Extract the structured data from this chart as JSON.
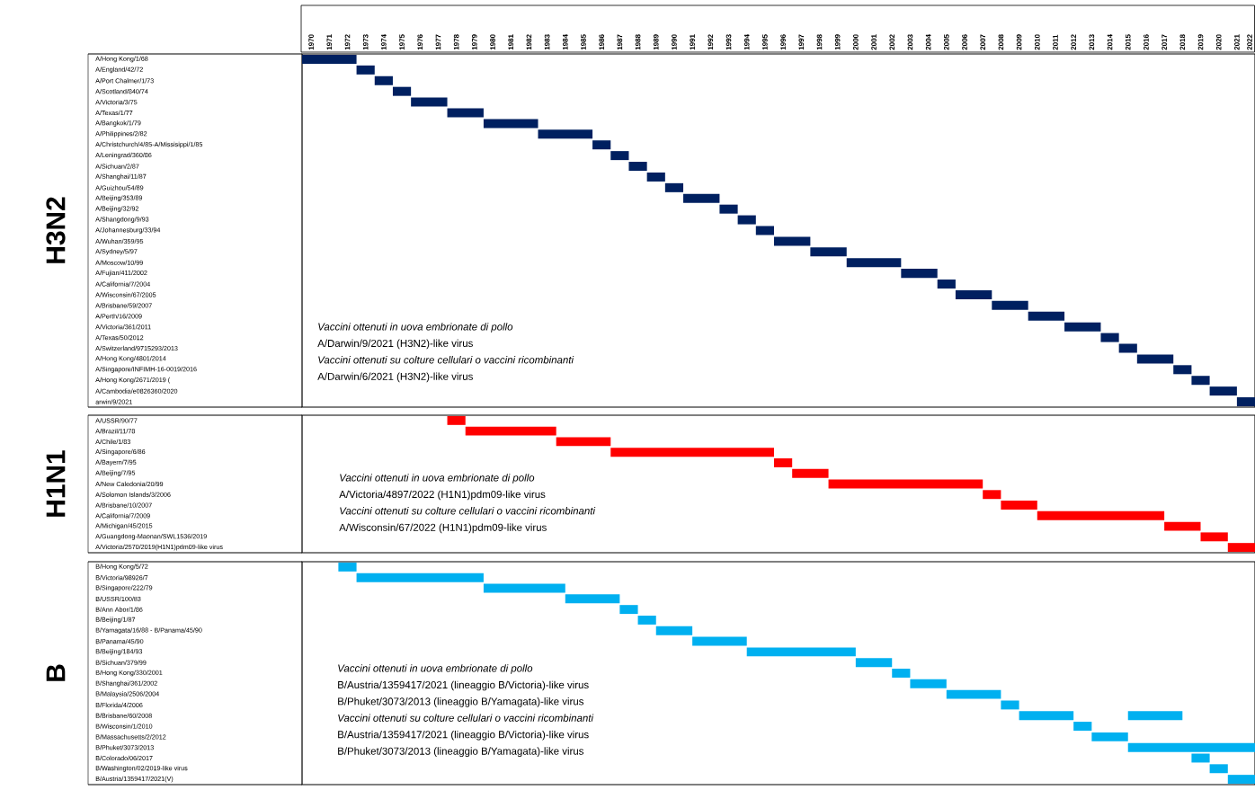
{
  "chart_data": [
    {
      "type": "bar",
      "orientation": "horizontal",
      "ylabel": "H3N2",
      "color": "#002060",
      "categories": [
        "A/Hong Kong/1/68",
        "A/England/42/72",
        "A/Port Chalmer/1/73",
        "A/Scotland/840/74",
        "A/Victoria/3/75",
        "A/Texas/1/77",
        "A/Bangkok/1/79",
        "A/Philippines/2/82",
        "A/Christchurch/4/85-A/Missisippi/1/85",
        "A/Leningrad/360/86",
        "A/Sichuan/2/87",
        "A/Shanghai/11/87",
        "A/Guizhou/54/89",
        "A/Beijing/353/89",
        "A/Beijing/32/92",
        "A/Shangdong/9/93",
        "A/Johannesburg/33/94",
        "A/Wuhan/359/95",
        "A/Sydney/5/97",
        "A/Moscow/10/99",
        "A/Fujian/411/2002",
        "A/California/7/2004",
        "A/Wisconsin/67/2005",
        "A/Brisbane/59/2007",
        "A/Perth/16/2009",
        "A/Victoria/361/2011",
        "A/Texas/50/2012",
        "A/Switzerland/9715293/2013",
        "A/Hong Kong/4801/2014",
        "A/Singapore/INFIMH-16-0019/2016",
        "A/Hong Kong/2671/2019 (",
        "A/Cambodia/e0826360/2020",
        "arwin/9/2021"
      ],
      "base": [
        1970,
        1973,
        1974,
        1975,
        1976,
        1978,
        1980,
        1983,
        1986,
        1987,
        1988,
        1989,
        1990,
        1991,
        1993,
        1994,
        1995,
        1996,
        1998,
        2000,
        2003,
        2005,
        2006,
        2008,
        2010,
        2012,
        2014,
        2015,
        2016,
        2018,
        2019,
        2020,
        2021.5
      ],
      "values": [
        3,
        1,
        1,
        1,
        2,
        2,
        3,
        3,
        1,
        1,
        1,
        1,
        1,
        2,
        1,
        1,
        1,
        2,
        2,
        3,
        2,
        1,
        2,
        2,
        2,
        2,
        1,
        1,
        2,
        1,
        1,
        1.5,
        1
      ],
      "xlim": [
        1970,
        2022.5
      ],
      "xticks": [
        {
          "value": 1970.5,
          "label": "1970"
        },
        {
          "value": 1971.5,
          "label": "1971"
        },
        {
          "value": 1972.5,
          "label": "1972"
        },
        {
          "value": 1973.5,
          "label": "1973"
        },
        {
          "value": 1974.5,
          "label": "1974"
        },
        {
          "value": 1975.5,
          "label": "1975"
        },
        {
          "value": 1976.5,
          "label": "1976"
        },
        {
          "value": 1977.5,
          "label": "1977"
        },
        {
          "value": 1978.5,
          "label": "1978"
        },
        {
          "value": 1979.5,
          "label": "1979"
        },
        {
          "value": 1980.5,
          "label": "1980"
        },
        {
          "value": 1981.5,
          "label": "1981"
        },
        {
          "value": 1982.5,
          "label": "1982"
        },
        {
          "value": 1983.5,
          "label": "1983"
        },
        {
          "value": 1984.5,
          "label": "1984"
        },
        {
          "value": 1985.5,
          "label": "1985"
        },
        {
          "value": 1986.5,
          "label": "1986"
        },
        {
          "value": 1987.5,
          "label": "1987"
        },
        {
          "value": 1988.5,
          "label": "1988"
        },
        {
          "value": 1989.5,
          "label": "1989"
        },
        {
          "value": 1990.5,
          "label": "1990"
        },
        {
          "value": 1991.5,
          "label": "1991"
        },
        {
          "value": 1992.5,
          "label": "1992"
        },
        {
          "value": 1993.5,
          "label": "1993"
        },
        {
          "value": 1994.5,
          "label": "1994"
        },
        {
          "value": 1995.5,
          "label": "1995"
        },
        {
          "value": 1996.5,
          "label": "1996"
        },
        {
          "value": 1997.5,
          "label": "1997"
        },
        {
          "value": 1998.5,
          "label": "1998"
        },
        {
          "value": 1999.5,
          "label": "1999"
        },
        {
          "value": 2000.5,
          "label": "2000"
        },
        {
          "value": 2001.5,
          "label": "2001"
        },
        {
          "value": 2002.5,
          "label": "2002"
        },
        {
          "value": 2003.5,
          "label": "2003"
        },
        {
          "value": 2004.5,
          "label": "2004"
        },
        {
          "value": 2005.5,
          "label": "2005"
        },
        {
          "value": 2006.5,
          "label": "2006"
        },
        {
          "value": 2007.5,
          "label": "2007"
        },
        {
          "value": 2008.5,
          "label": "2008"
        },
        {
          "value": 2009.5,
          "label": "2009"
        },
        {
          "value": 2010.5,
          "label": "2010"
        },
        {
          "value": 2011.5,
          "label": "2011"
        },
        {
          "value": 2012.5,
          "label": "2012"
        },
        {
          "value": 2013.5,
          "label": "2013"
        },
        {
          "value": 2014.5,
          "label": "2014"
        },
        {
          "value": 2015.5,
          "label": "2015"
        },
        {
          "value": 2016.5,
          "label": "2016"
        },
        {
          "value": 2017.5,
          "label": "2017"
        },
        {
          "value": 2018.5,
          "label": "2018"
        },
        {
          "value": 2019.5,
          "label": "2019"
        },
        {
          "value": 2020.5,
          "label": "2020"
        },
        {
          "value": 2021.5,
          "label": "2021"
        },
        {
          "value": 2022.2,
          "label": "2022"
        }
      ],
      "annotations": [
        "*Vaccini ottenuti in uova embrionate di pollo*",
        "A/Darwin/9/2021 (H3N2)-like virus",
        "*Vaccini ottenuti su colture cellulari o vaccini ricombinanti*",
        "A/Darwin/6/2021 (H3N2)-like virus"
      ]
    },
    {
      "type": "bar",
      "orientation": "horizontal",
      "ylabel": "H1N1",
      "color": "#ff0000",
      "tick_labels": "y",
      "categories": [
        "A/USSR/90/77",
        "A/Brazil/11/78",
        "A/Chile/1/83",
        "A/Singapore/6/86",
        "A/Bayern/7/95",
        "A/Beijing/7/95",
        "A/New Caledonia/20/99",
        "A/Solomon Islands/3/2006",
        "A/Brisbane/10/2007",
        "A/California/7/2009",
        "A/Michigan/45/2015",
        "A/Guangdong-Maonan/SWL1536/2019",
        "A/Victoria/2570/2019(H1N1)pdm09-like virus"
      ],
      "base": [
        1978,
        1979,
        1984,
        1987,
        1996,
        1997,
        1999,
        2007.5,
        2008.5,
        2010.5,
        2017.5,
        2019.5,
        2021
      ],
      "values": [
        1,
        5,
        3,
        9,
        1,
        2,
        8.5,
        1,
        2,
        7,
        2,
        1.5,
        1.5
      ],
      "xlim": [
        1970,
        2022.5
      ],
      "annotations": [
        "*Vaccini ottenuti in uova embrionate di pollo*",
        "A/Victoria/4897/2022 (H1N1)pdm09-like virus",
        "*Vaccini ottenuti su colture cellulari o vaccini ricombinanti*",
        "A/Wisconsin/67/2022 (H1N1)pdm09-like virus"
      ]
    },
    {
      "type": "bar",
      "orientation": "horizontal",
      "ylabel": "B",
      "tick_labels": "y",
      "categories": [
        "B/Hong Kong/5/72",
        "B/Victoria/98926/7",
        "B/Singapore/222/79",
        "B/USSR/100/83",
        "B/Ann Abor/1/86",
        "B/Beijing/1/87",
        "B/Yamagata/16/88 - B/Panama/45/90",
        "B/Panama/45/90",
        "B/Beijing/184/93",
        "B/Sichuan/379/99",
        "B/Hong Kong/330/2001",
        "B/Shanghai/361/2002",
        "B/Malaysia/2506/2004",
        "B/Florida/4/2006",
        "B/Brisbane/60/2008",
        "B/Wisconsin/1/2010",
        "B/Massachusetts/2/2012",
        "B/Phuket/3073/2013",
        "B/Colorado/06/2017",
        "B/Washington/02/2019-like virus",
        "B/Austria/1359417/2021(V)"
      ],
      "series": [
        {
          "color": "#00b0f0",
          "base": [
            1972,
            1973,
            1980,
            1984.5,
            1987.5,
            1988.5,
            1989.5,
            1991.5,
            1994.5,
            2000.5,
            2002.5,
            2003.5,
            2005.5,
            2008.5,
            2009.5,
            2012.5,
            2013.5,
            2015.5,
            2019,
            2020,
            2021
          ],
          "values": [
            1,
            7,
            4.5,
            3,
            1,
            1,
            2,
            3,
            6,
            2,
            1,
            2,
            3,
            1,
            3,
            1,
            2,
            7,
            1,
            1,
            1.5
          ]
        },
        {
          "color": "#00b0f0",
          "base": [
            null,
            null,
            null,
            null,
            null,
            null,
            null,
            null,
            null,
            null,
            null,
            null,
            null,
            null,
            2015.5,
            null,
            null,
            null,
            null,
            null,
            null
          ],
          "values": [
            null,
            null,
            null,
            null,
            null,
            null,
            null,
            null,
            null,
            null,
            null,
            null,
            null,
            null,
            3,
            null,
            null,
            null,
            null,
            null,
            null
          ]
        }
      ],
      "xlim": [
        1970,
        2022.5
      ],
      "annotations": [
        "*Vaccini ottenuti in uova embrionate di pollo*",
        "B/Austria/1359417/2021 (lineaggio B/Victoria)-like virus",
        "B/Phuket/3073/2013 (lineaggio B/Yamagata)-like virus",
        "*Vaccini ottenuti su colture cellulari o vaccini ricombinanti*",
        "B/Austria/1359417/2021 (lineaggio B/Victoria)-like virus",
        "B/Phuket/3073/2013 (lineaggio B/Yamagata)-like virus"
      ]
    }
  ]
}
